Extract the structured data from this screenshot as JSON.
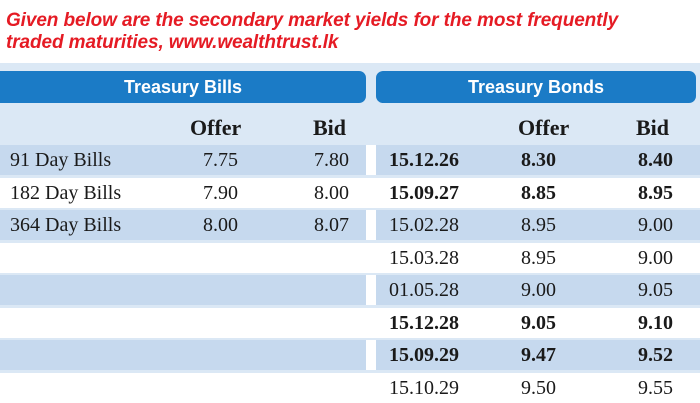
{
  "caption": {
    "line1": "Given below are the secondary market yields for the most frequently",
    "line2": "traded maturities, www.wealthtrust.lk"
  },
  "bills": {
    "title": "Treasury Bills",
    "col_offer": "Offer",
    "col_bid": "Bid",
    "rows": [
      {
        "name": "91 Day Bills",
        "offer": "7.75",
        "bid": "7.80"
      },
      {
        "name": "182 Day Bills",
        "offer": "7.90",
        "bid": "8.00"
      },
      {
        "name": "364 Day Bills",
        "offer": "8.00",
        "bid": "8.07"
      }
    ]
  },
  "bonds": {
    "title": "Treasury Bonds",
    "col_offer": "Offer",
    "col_bid": "Bid",
    "rows": [
      {
        "maturity": "15.12.26",
        "offer": "8.30",
        "bid": "8.40",
        "bold": true
      },
      {
        "maturity": "15.09.27",
        "offer": "8.85",
        "bid": "8.95",
        "bold": true
      },
      {
        "maturity": "15.02.28",
        "offer": "8.95",
        "bid": "9.00",
        "bold": false
      },
      {
        "maturity": "15.03.28",
        "offer": "8.95",
        "bid": "9.00",
        "bold": false
      },
      {
        "maturity": "01.05.28",
        "offer": "9.00",
        "bid": "9.05",
        "bold": false
      },
      {
        "maturity": "15.12.28",
        "offer": "9.05",
        "bid": "9.10",
        "bold": true
      },
      {
        "maturity": "15.09.29",
        "offer": "9.47",
        "bid": "9.52",
        "bold": true
      },
      {
        "maturity": "15.10.29",
        "offer": "9.50",
        "bid": "9.55",
        "bold": false
      }
    ]
  },
  "colors": {
    "caption": "#e51b24",
    "header": "#1b7bc6",
    "panel": "#dbe8f5",
    "stripe": "#c6d9ee"
  }
}
